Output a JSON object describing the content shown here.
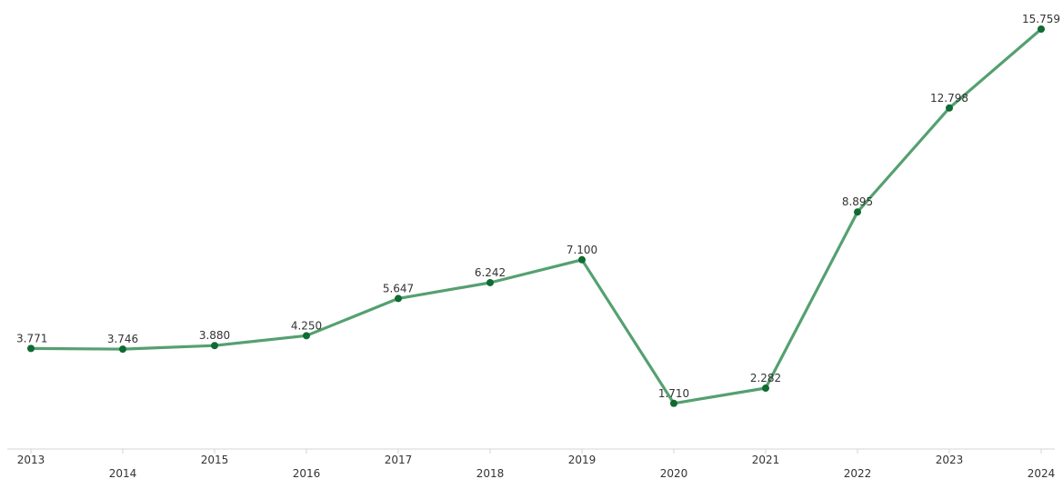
{
  "chart_data": {
    "type": "line",
    "categories": [
      "2013",
      "2014",
      "2015",
      "2016",
      "2017",
      "2018",
      "2019",
      "2020",
      "2021",
      "2022",
      "2023",
      "2024"
    ],
    "values": [
      3771,
      3746,
      3880,
      4250,
      5647,
      6242,
      7100,
      1710,
      2282,
      8895,
      12798,
      15759
    ],
    "data_labels": [
      "3.771",
      "3.746",
      "3.880",
      "4.250",
      "5.647",
      "6.242",
      "7.100",
      "1.710",
      "2.282",
      "8.895",
      "12.798",
      "15.759"
    ],
    "title": "",
    "xlabel": "",
    "ylabel": "",
    "grid": false,
    "legend": "none",
    "line_color": "#55a070",
    "marker_color": "#0f6b32",
    "axis_color": "#d6d6d6"
  }
}
